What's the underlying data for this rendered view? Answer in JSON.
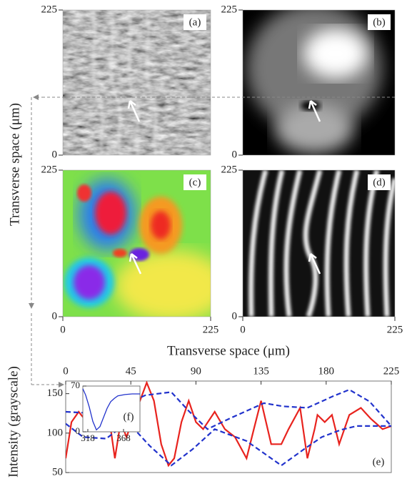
{
  "image_panels": {
    "xlabel": "Transverse space (μm)",
    "ylabel": "Transverse space (μm)",
    "lim": [
      0,
      225
    ],
    "ticks": [
      0,
      225
    ],
    "panels": [
      {
        "label": "(a)"
      },
      {
        "label": "(b)"
      },
      {
        "label": "(c)"
      },
      {
        "label": "(d)"
      }
    ]
  },
  "chart_data": [
    {
      "type": "line",
      "label": "(e)",
      "ylabel": "Intensity (grayscale)",
      "xlim": [
        0,
        225
      ],
      "xticks": [
        0,
        45,
        90,
        135,
        180,
        225
      ],
      "ylim": [
        50,
        166
      ],
      "yticks": [
        50,
        100,
        150
      ],
      "series": [
        {
          "color": "#e8231e",
          "dashed": false,
          "x": [
            0,
            4,
            9,
            13,
            18,
            26,
            29,
            34,
            38,
            42,
            56,
            61,
            66,
            71,
            75,
            80,
            85,
            90,
            95,
            103,
            110,
            117,
            125,
            130,
            135,
            142,
            149,
            154,
            162,
            167,
            172,
            174,
            179,
            184,
            189,
            196,
            204,
            211,
            219,
            225
          ],
          "values": [
            68,
            114,
            127,
            118,
            105,
            114,
            132,
            68,
            114,
            95,
            164,
            141,
            86,
            59,
            68,
            114,
            141,
            114,
            105,
            127,
            105,
            95,
            68,
            105,
            141,
            86,
            86,
            105,
            132,
            68,
            105,
            123,
            114,
            123,
            86,
            123,
            132,
            118,
            105,
            109
          ]
        },
        {
          "color": "#2233cc",
          "dashed": true,
          "x": [
            0,
            20,
            40,
            55,
            73,
            85,
            98,
            115,
            137,
            150,
            167,
            185,
            196,
            210,
            225
          ],
          "values": [
            127,
            125,
            135,
            148,
            152,
            128,
            105,
            120,
            138,
            134,
            132,
            147,
            155,
            140,
            109
          ]
        },
        {
          "color": "#2233cc",
          "dashed": true,
          "x": [
            0,
            12,
            28,
            43,
            58,
            73,
            88,
            103,
            125,
            149,
            165,
            177,
            190,
            201,
            225
          ],
          "values": [
            112,
            95,
            93,
            114,
            84,
            59,
            80,
            105,
            90,
            59,
            80,
            95,
            104,
            109,
            109
          ]
        }
      ]
    },
    {
      "type": "line",
      "label": "(f)",
      "xlim": [
        311,
        391
      ],
      "xticks": [
        318,
        368
      ],
      "ylim": [
        0,
        70
      ],
      "yticks": [
        0,
        70
      ],
      "series": [
        {
          "color": "#2233cc",
          "dashed": false,
          "x": [
            311,
            315,
            320,
            325,
            330,
            335,
            340,
            345,
            350,
            355,
            360,
            370,
            380,
            391
          ],
          "values": [
            66,
            56,
            38,
            16,
            3,
            8,
            22,
            36,
            46,
            51,
            55,
            57,
            58,
            58
          ]
        }
      ]
    }
  ]
}
